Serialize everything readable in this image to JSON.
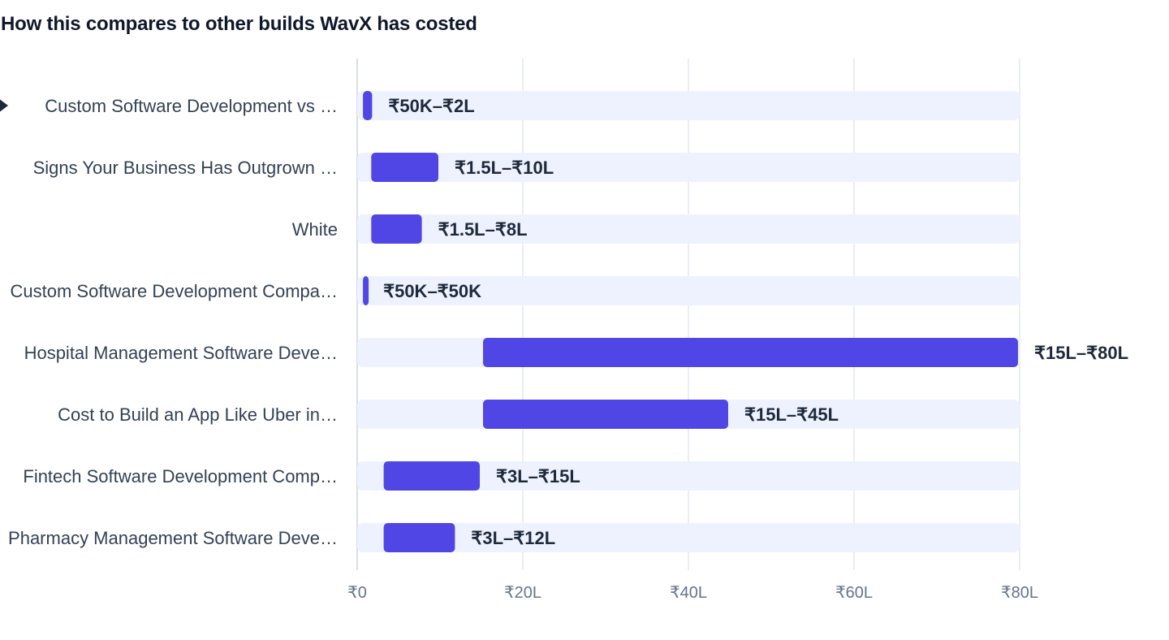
{
  "title": "How this compares to other builds WavX has costed",
  "colors": {
    "bar": "#4f46e5",
    "track": "#eef2ff",
    "grid": "#e2e8f0",
    "axis": "#cbd5e1"
  },
  "chart_data": {
    "type": "bar",
    "orientation": "horizontal-range",
    "title": "How this compares to other builds WavX has costed",
    "xlim": [
      0,
      80
    ],
    "x_unit": "₹ lakh",
    "grid": true,
    "x_ticks": [
      {
        "value": 0,
        "label": "₹0"
      },
      {
        "value": 20,
        "label": "₹20L"
      },
      {
        "value": 40,
        "label": "₹40L"
      },
      {
        "value": 60,
        "label": "₹60L"
      },
      {
        "value": 80,
        "label": "₹80L"
      }
    ],
    "rows": [
      {
        "label": "Custom Software Development vs …",
        "current": true,
        "low": 0.5,
        "high": 2,
        "range_label": "₹50K–₹2L"
      },
      {
        "label": "Signs Your Business Has Outgrown …",
        "low": 1.5,
        "high": 10,
        "range_label": "₹1.5L–₹10L"
      },
      {
        "label": "White",
        "low": 1.5,
        "high": 8,
        "range_label": "₹1.5L–₹8L"
      },
      {
        "label": "Custom Software Development Compa…",
        "low": 0.5,
        "high": 0.5,
        "range_label": "₹50K–₹50K"
      },
      {
        "label": "Hospital Management Software Deve…",
        "low": 15,
        "high": 80,
        "range_label": "₹15L–₹80L"
      },
      {
        "label": "Cost to Build an App Like Uber in…",
        "low": 15,
        "high": 45,
        "range_label": "₹15L–₹45L"
      },
      {
        "label": "Fintech Software Development Comp…",
        "low": 3,
        "high": 15,
        "range_label": "₹3L–₹15L"
      },
      {
        "label": "Pharmacy Management Software Deve…",
        "low": 3,
        "high": 12,
        "range_label": "₹3L–₹12L"
      }
    ]
  }
}
